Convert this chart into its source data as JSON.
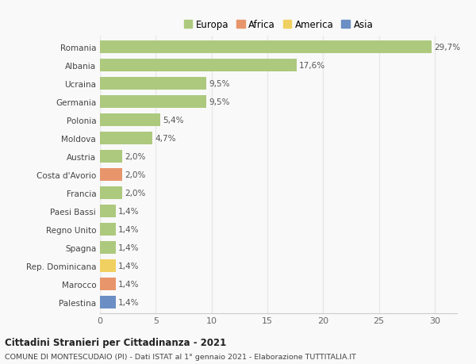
{
  "countries": [
    "Romania",
    "Albania",
    "Ucraina",
    "Germania",
    "Polonia",
    "Moldova",
    "Austria",
    "Costa d'Avorio",
    "Francia",
    "Paesi Bassi",
    "Regno Unito",
    "Spagna",
    "Rep. Dominicana",
    "Marocco",
    "Palestina"
  ],
  "values": [
    29.7,
    17.6,
    9.5,
    9.5,
    5.4,
    4.7,
    2.0,
    2.0,
    2.0,
    1.4,
    1.4,
    1.4,
    1.4,
    1.4,
    1.4
  ],
  "labels": [
    "29,7%",
    "17,6%",
    "9,5%",
    "9,5%",
    "5,4%",
    "4,7%",
    "2,0%",
    "2,0%",
    "2,0%",
    "1,4%",
    "1,4%",
    "1,4%",
    "1,4%",
    "1,4%",
    "1,4%"
  ],
  "continents": [
    "Europa",
    "Europa",
    "Europa",
    "Europa",
    "Europa",
    "Europa",
    "Europa",
    "Africa",
    "Europa",
    "Europa",
    "Europa",
    "Europa",
    "America",
    "Africa",
    "Asia"
  ],
  "colors": {
    "Europa": "#adc97e",
    "Africa": "#e8956b",
    "America": "#f0d060",
    "Asia": "#6b8ec4"
  },
  "title1": "Cittadini Stranieri per Cittadinanza - 2021",
  "title2": "COMUNE DI MONTESCUDAIO (PI) - Dati ISTAT al 1° gennaio 2021 - Elaborazione TUTTITALIA.IT",
  "xlim": [
    0,
    32
  ],
  "xticks": [
    0,
    5,
    10,
    15,
    20,
    25,
    30
  ],
  "background_color": "#f9f9f9",
  "grid_color": "#e8e8e8",
  "bar_height": 0.72
}
